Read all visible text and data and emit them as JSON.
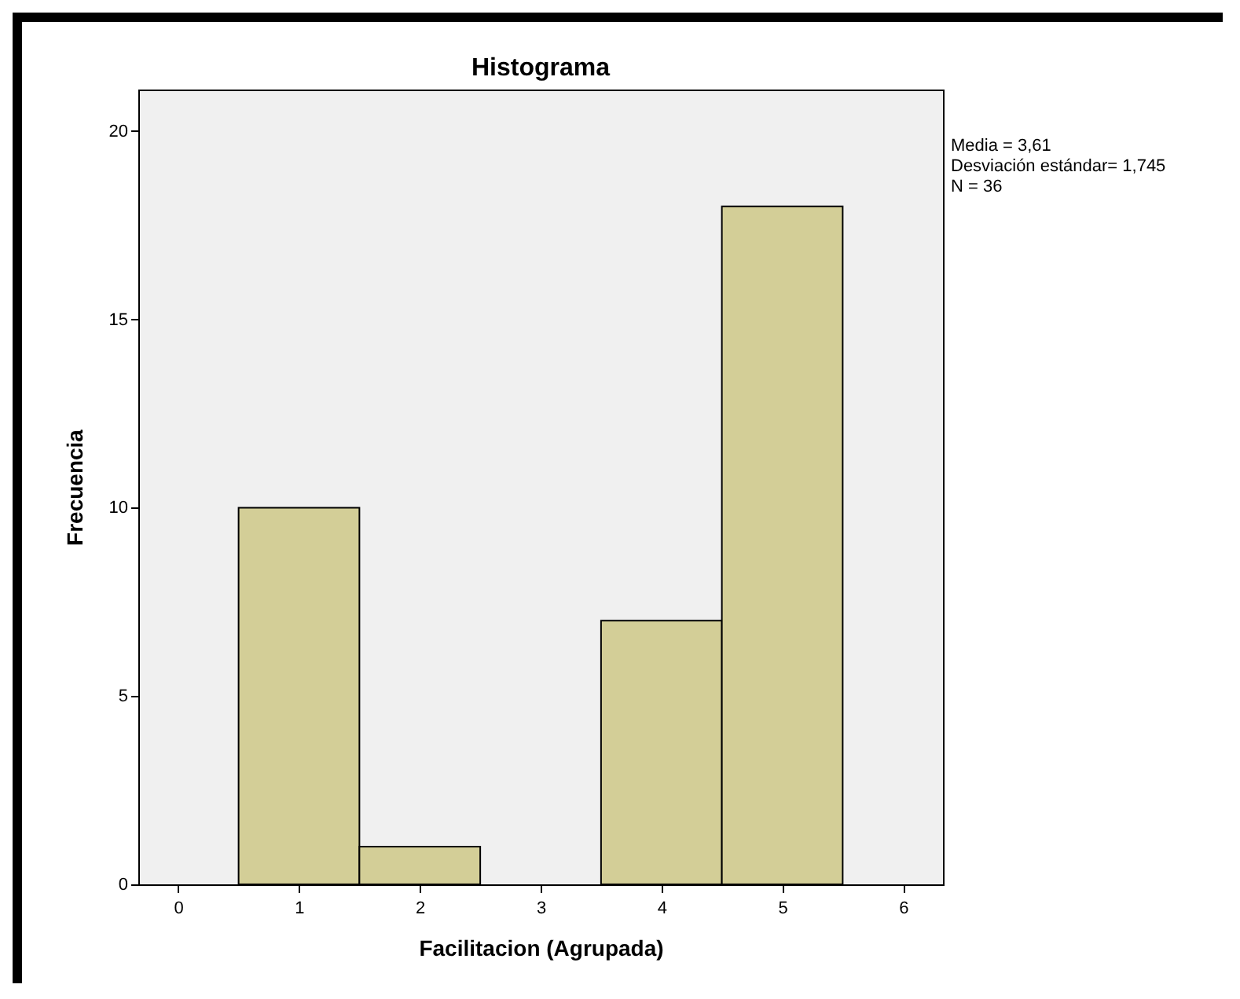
{
  "chart_data": {
    "type": "histogram",
    "title": "Histograma",
    "xlabel": "Facilitacion (Agrupada)",
    "ylabel": "Frecuencia",
    "bins": [
      0.5,
      1.5,
      2.5,
      3.5,
      4.5,
      5.5
    ],
    "values": [
      10,
      1,
      0,
      7,
      18
    ],
    "color": "#d3ce97",
    "xlim": [
      -0.33,
      6.33
    ],
    "xticks": [
      0,
      1,
      2,
      3,
      4,
      5,
      6
    ],
    "ylim": [
      0,
      21.1
    ],
    "yticks": [
      0,
      5,
      10,
      15,
      20
    ],
    "grid": false,
    "annotations": [
      "Media = 3,61",
      "Desviación estándar= 1,745",
      "N = 36"
    ]
  }
}
